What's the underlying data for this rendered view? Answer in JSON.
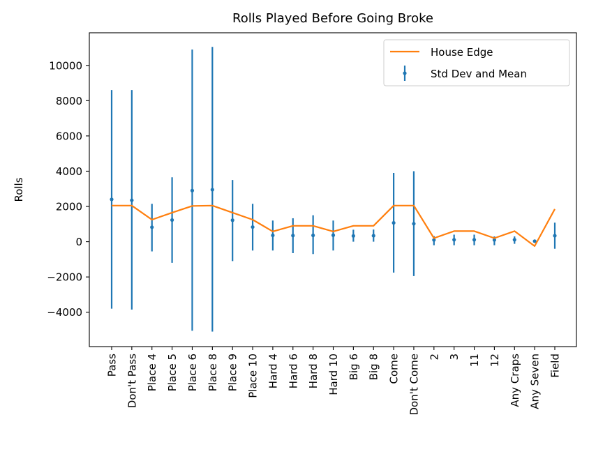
{
  "chart_data": {
    "type": "line",
    "title": "Rolls Played Before Going Broke",
    "xlabel": "",
    "ylabel": "Rolls",
    "ylim": [
      -5950,
      11850
    ],
    "yticks": [
      -4000,
      -2000,
      0,
      2000,
      4000,
      6000,
      8000,
      10000
    ],
    "ytick_labels": [
      "−4000",
      "−2000",
      "0",
      "2000",
      "4000",
      "6000",
      "8000",
      "10000"
    ],
    "grid": false,
    "legend_position": "top-right",
    "categories": [
      "Pass",
      "Don't Pass",
      "Place 4",
      "Place 5",
      "Place 6",
      "Place 8",
      "Place 9",
      "Place 10",
      "Hard 4",
      "Hard 6",
      "Hard 8",
      "Hard 10",
      "Big 6",
      "Big 8",
      "Come",
      "Don't Come",
      "2",
      "3",
      "11",
      "12",
      "Any Craps",
      "Any Seven",
      "Field"
    ],
    "series": [
      {
        "name": "House Edge",
        "kind": "line",
        "color": "#ff7f0e",
        "values": [
          2050,
          2050,
          1250,
          1650,
          2030,
          2050,
          1650,
          1250,
          580,
          900,
          900,
          580,
          900,
          900,
          2050,
          2050,
          200,
          600,
          600,
          200,
          600,
          -250,
          1850
        ]
      },
      {
        "name": "Std Dev and Mean",
        "kind": "errorbar",
        "color": "#1f77b4",
        "mean": [
          2400,
          2350,
          820,
          1230,
          2900,
          2950,
          1220,
          830,
          360,
          350,
          360,
          370,
          330,
          340,
          1070,
          1020,
          100,
          110,
          110,
          100,
          110,
          30,
          340
        ],
        "lower": [
          -3800,
          -3850,
          -550,
          -1200,
          -5050,
          -5100,
          -1100,
          -500,
          -500,
          -650,
          -700,
          -500,
          0,
          0,
          -1750,
          -1950,
          -200,
          -200,
          -200,
          -200,
          -120,
          -20,
          -400
        ],
        "upper": [
          8600,
          8600,
          2150,
          3650,
          10900,
          11050,
          3500,
          2150,
          1200,
          1330,
          1500,
          1200,
          680,
          690,
          3900,
          4000,
          320,
          400,
          400,
          300,
          300,
          60,
          1080
        ]
      }
    ]
  }
}
